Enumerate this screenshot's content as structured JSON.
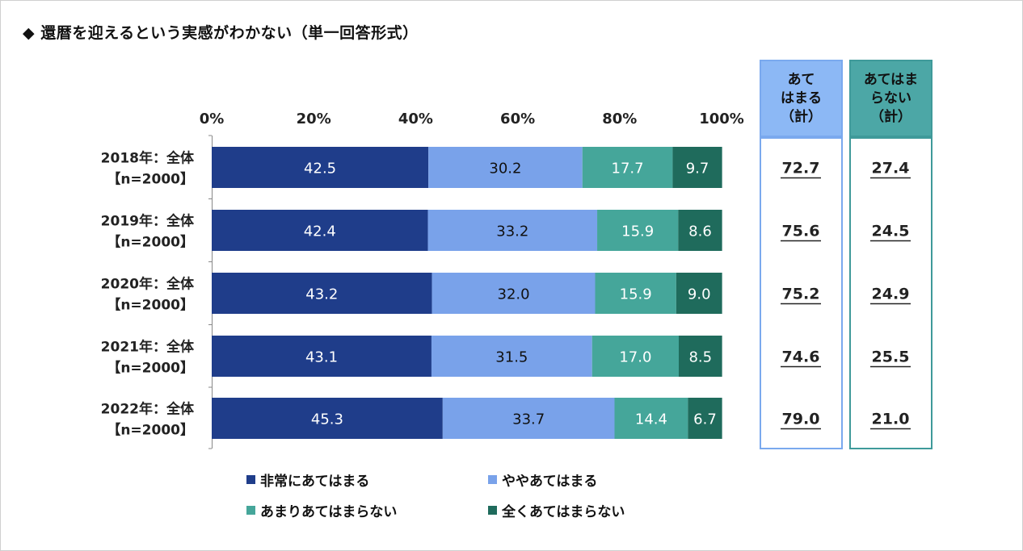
{
  "title": "◆ 還暦を迎えるという実感がわかない（単一回答形式）",
  "colors": {
    "very_true": "#1f3d8a",
    "somewhat_true": "#79a2ea",
    "not_very_true": "#45a69a",
    "not_true": "#1f6b5c",
    "col1_head": "#8cb8f5",
    "col1_border": "#7aa9ee",
    "col2_head": "#4ca7a6",
    "col2_border": "#3f9a9a"
  },
  "columns": {
    "col1_header": "あて\nはまる\n（計）",
    "col2_header": "あてはま\nらない\n（計）"
  },
  "chart_data": {
    "type": "bar",
    "orientation": "horizontal-stacked-100",
    "x_ticks": [
      "0%",
      "20%",
      "40%",
      "60%",
      "80%",
      "100%"
    ],
    "xlim": [
      0,
      100
    ],
    "categories": [
      [
        "2018年：全体",
        "【n=2000】"
      ],
      [
        "2019年：全体",
        "【n=2000】"
      ],
      [
        "2020年：全体",
        "【n=2000】"
      ],
      [
        "2021年：全体",
        "【n=2000】"
      ],
      [
        "2022年：全体",
        "【n=2000】"
      ]
    ],
    "series": [
      {
        "name": "非常にあてはまる",
        "color_key": "very_true",
        "values": [
          42.5,
          42.4,
          43.2,
          43.1,
          45.3
        ]
      },
      {
        "name": "ややあてはまる",
        "color_key": "somewhat_true",
        "values": [
          30.2,
          33.2,
          32.0,
          31.5,
          33.7
        ]
      },
      {
        "name": "あまりあてはまらない",
        "color_key": "not_very_true",
        "values": [
          17.7,
          15.9,
          15.9,
          17.0,
          14.4
        ]
      },
      {
        "name": "全くあてはまらない",
        "color_key": "not_true",
        "values": [
          9.7,
          8.6,
          9.0,
          8.5,
          6.7
        ]
      }
    ],
    "applies_total": [
      72.7,
      75.6,
      75.2,
      74.6,
      79.0
    ],
    "not_applies_total": [
      27.4,
      24.5,
      24.9,
      25.5,
      21.0
    ],
    "legend_position": "bottom",
    "grid": false
  }
}
